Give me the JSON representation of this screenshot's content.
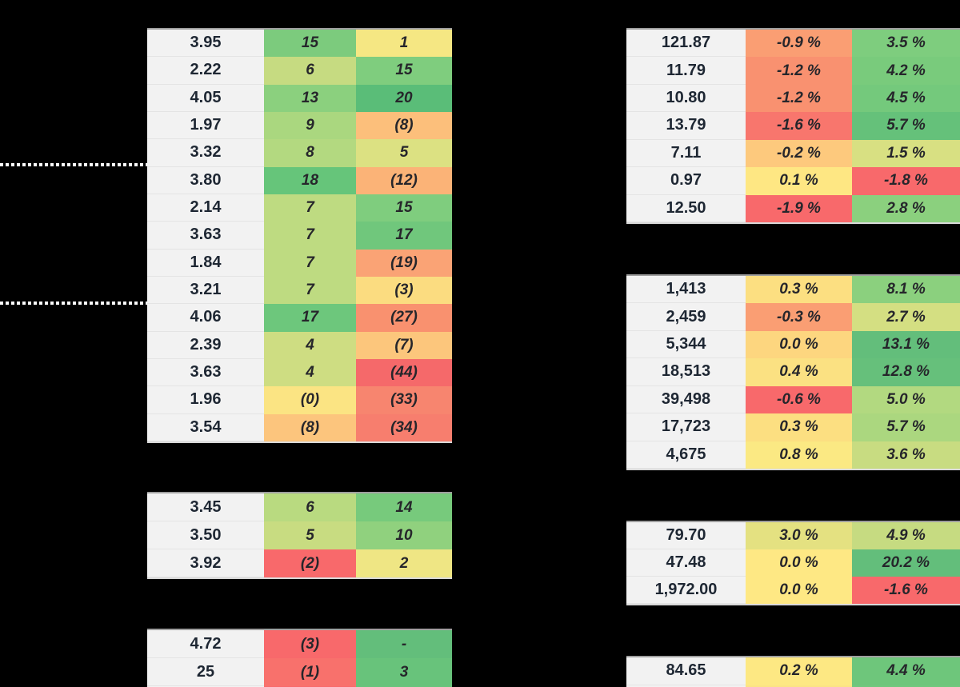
{
  "sheet": {
    "background": "#000000",
    "neutral_cell_bg": "#f2f2f2",
    "scale_colors": {
      "min": "#f8696b",
      "mid": "#ffeb84",
      "max": "#63be7b"
    },
    "dividers": {
      "style": "dotted",
      "color_outside_table": "#ffffff",
      "color_inside_table": "#222222"
    }
  },
  "tables": [
    {
      "id": "left-1",
      "rows": [
        [
          "3.95",
          [
            "15",
            "#7ccb7d"
          ],
          [
            "1",
            "#f5e783"
          ]
        ],
        [
          "2.22",
          [
            "6",
            "#c6db81"
          ],
          [
            "15",
            "#7fcd7e"
          ]
        ],
        [
          "4.05",
          [
            "13",
            "#8bd07e"
          ],
          [
            "20",
            "#5abd78"
          ]
        ],
        [
          "1.97",
          [
            "9",
            "#aad77f"
          ],
          [
            "(8)",
            "#fcbf7b"
          ]
        ],
        [
          "3.32",
          [
            "8",
            "#b3d980"
          ],
          [
            "5",
            "#dce182"
          ]
        ],
        [
          "3.80",
          [
            "18",
            "#66c57a"
          ],
          [
            "(12)",
            "#fbb377"
          ]
        ],
        [
          "2.14",
          [
            "7",
            "#bedb81"
          ],
          [
            "15",
            "#7fcd7e"
          ]
        ],
        [
          "3.63",
          [
            "7",
            "#bedb81"
          ],
          [
            "17",
            "#70c77c"
          ]
        ],
        [
          "1.84",
          [
            "7",
            "#bedb81"
          ],
          [
            "(19)",
            "#faa375"
          ]
        ],
        [
          "3.21",
          [
            "7",
            "#bedb81"
          ],
          [
            "(3)",
            "#fbdc80"
          ]
        ],
        [
          "4.06",
          [
            "17",
            "#6dc77c"
          ],
          [
            "(27)",
            "#f9916f"
          ]
        ],
        [
          "2.39",
          [
            "4",
            "#cedd82"
          ],
          [
            "(7)",
            "#fcc67c"
          ]
        ],
        [
          "3.63",
          [
            "4",
            "#cedd82"
          ],
          [
            "(44)",
            "#f5696a"
          ]
        ],
        [
          "1.96",
          [
            "(0)",
            "#fbe483"
          ],
          [
            "(33)",
            "#f7856f"
          ]
        ],
        [
          "3.54",
          [
            "(8)",
            "#fcc57d"
          ],
          [
            "(34)",
            "#f77e6e"
          ]
        ]
      ]
    },
    {
      "id": "left-2",
      "rows": [
        [
          "3.45",
          [
            "6",
            "#b9da80"
          ],
          [
            "14",
            "#77ca7c"
          ]
        ],
        [
          "3.50",
          [
            "5",
            "#c8dc81"
          ],
          [
            "10",
            "#90d17e"
          ]
        ],
        [
          "3.92",
          [
            "(2)",
            "#f8696b"
          ],
          [
            "2",
            "#efe684"
          ]
        ]
      ]
    },
    {
      "id": "left-3",
      "rows": [
        [
          "4.72",
          [
            "(3)",
            "#f8696b"
          ],
          [
            "-",
            "#63be7b"
          ]
        ],
        [
          "25",
          [
            "(1)",
            "#f8716c"
          ],
          [
            "3",
            "#68c37b"
          ]
        ],
        [
          "",
          [
            "",
            "#f8696b"
          ],
          [
            "",
            "#68c37b"
          ]
        ]
      ]
    },
    {
      "id": "right-1",
      "rows": [
        [
          "121.87",
          [
            "-0.9 %",
            "#fa9e73"
          ],
          [
            "3.5 %",
            "#7ecd7e"
          ]
        ],
        [
          "11.79",
          [
            "-1.2 %",
            "#f99170"
          ],
          [
            "4.2 %",
            "#79cb7c"
          ]
        ],
        [
          "10.80",
          [
            "-1.2 %",
            "#f99170"
          ],
          [
            "4.5 %",
            "#74c97c"
          ]
        ],
        [
          "13.79",
          [
            "-1.6 %",
            "#f8766d"
          ],
          [
            "5.7 %",
            "#65c17a"
          ]
        ],
        [
          "7.11",
          [
            "-0.2 %",
            "#fdc97d"
          ],
          [
            "1.5 %",
            "#d8e082"
          ]
        ],
        [
          "0.97",
          [
            "0.1 %",
            "#fee783"
          ],
          [
            "-1.8 %",
            "#f8696b"
          ]
        ],
        [
          "12.50",
          [
            "-1.9 %",
            "#f8696b"
          ],
          [
            "2.8 %",
            "#8bd07e"
          ]
        ]
      ]
    },
    {
      "id": "right-2",
      "rows": [
        [
          "1,413",
          [
            "0.3 %",
            "#fcdf81"
          ],
          [
            "8.1 %",
            "#8bd07e"
          ]
        ],
        [
          "2,459",
          [
            "-0.3 %",
            "#fa9e73"
          ],
          [
            "2.7 %",
            "#d4df82"
          ]
        ],
        [
          "5,344",
          [
            "0.0 %",
            "#fdd67f"
          ],
          [
            "13.1 %",
            "#63be7b"
          ]
        ],
        [
          "18,513",
          [
            "0.4 %",
            "#fbe182"
          ],
          [
            "12.8 %",
            "#66c07b"
          ]
        ],
        [
          "39,498",
          [
            "-0.6 %",
            "#f8696b"
          ],
          [
            "5.0 %",
            "#b2d980"
          ]
        ],
        [
          "17,723",
          [
            "0.3 %",
            "#fcdf81"
          ],
          [
            "5.7 %",
            "#abd77f"
          ]
        ],
        [
          "4,675",
          [
            "0.8 %",
            "#fbe983"
          ],
          [
            "3.6 %",
            "#c8dc81"
          ]
        ]
      ]
    },
    {
      "id": "right-3",
      "rows": [
        [
          "79.70",
          [
            "3.0 %",
            "#e4e181"
          ],
          [
            "4.9 %",
            "#c6db81"
          ]
        ],
        [
          "47.48",
          [
            "0.0 %",
            "#fee884"
          ],
          [
            "20.2 %",
            "#63be7b"
          ]
        ],
        [
          "1,972.00",
          [
            "0.0 %",
            "#fee884"
          ],
          [
            "-1.6 %",
            "#f8696b"
          ]
        ]
      ]
    },
    {
      "id": "right-4",
      "rows": [
        [
          "84.65",
          [
            "0.2 %",
            "#fde883"
          ],
          [
            "4.4 %",
            "#6ec67b"
          ]
        ],
        [
          "",
          [
            "",
            "#fbe483"
          ],
          [
            "",
            "#70c77c"
          ]
        ]
      ]
    }
  ]
}
